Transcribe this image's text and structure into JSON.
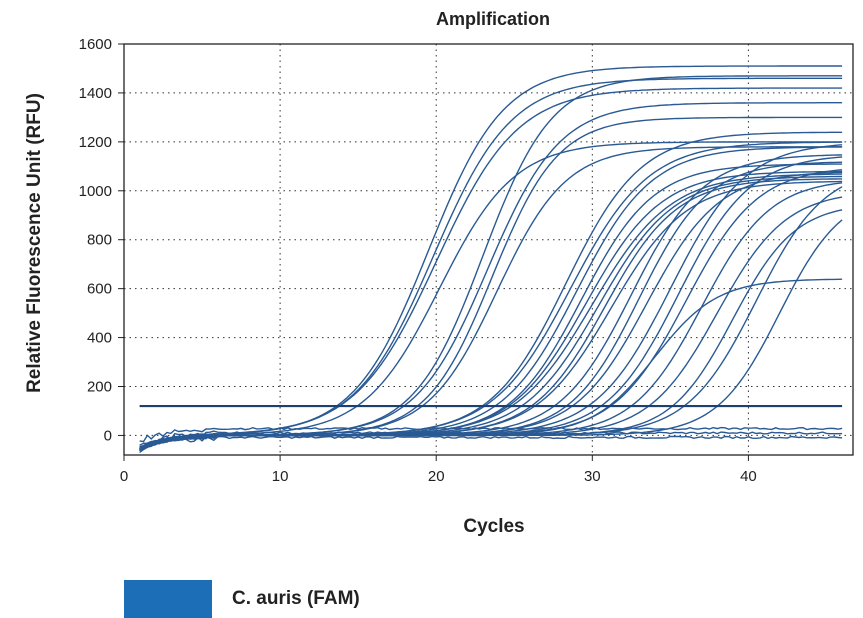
{
  "chart_data": {
    "type": "line",
    "title": "Amplification",
    "xlabel": "Cycles",
    "ylabel": "Relative Fluorescence Unit (RFU)",
    "xlim": [
      0,
      46.7
    ],
    "ylim": [
      -80,
      1600
    ],
    "xticks": [
      0,
      10,
      20,
      30,
      40
    ],
    "yticks": [
      0,
      200,
      400,
      600,
      800,
      1000,
      1200,
      1400,
      1600
    ],
    "grid": "dotted",
    "line_color": "#2a5a94",
    "threshold": 120,
    "legend_position": "bottom-left",
    "legend": [
      {
        "label": "C. auris (FAM)",
        "color": "#1c6fb6"
      }
    ],
    "curves": [
      {
        "ct": 19.5,
        "plateau": 1510,
        "slope": 2.4
      },
      {
        "ct": 19.8,
        "plateau": 1460,
        "slope": 2.5
      },
      {
        "ct": 20.0,
        "plateau": 1420,
        "slope": 2.6
      },
      {
        "ct": 20.2,
        "plateau": 1200,
        "slope": 2.4
      },
      {
        "ct": 23.0,
        "plateau": 1470,
        "slope": 2.2
      },
      {
        "ct": 23.3,
        "plateau": 1360,
        "slope": 2.3
      },
      {
        "ct": 23.6,
        "plateau": 1300,
        "slope": 2.1
      },
      {
        "ct": 23.9,
        "plateau": 1180,
        "slope": 2.2
      },
      {
        "ct": 28.3,
        "plateau": 1240,
        "slope": 2.4
      },
      {
        "ct": 28.6,
        "plateau": 1200,
        "slope": 2.5
      },
      {
        "ct": 29.0,
        "plateau": 1180,
        "slope": 2.4
      },
      {
        "ct": 29.3,
        "plateau": 1110,
        "slope": 2.3
      },
      {
        "ct": 29.6,
        "plateau": 1080,
        "slope": 2.4
      },
      {
        "ct": 30.0,
        "plateau": 1070,
        "slope": 2.5
      },
      {
        "ct": 30.4,
        "plateau": 1060,
        "slope": 2.4
      },
      {
        "ct": 30.8,
        "plateau": 1050,
        "slope": 2.3
      },
      {
        "ct": 31.2,
        "plateau": 1040,
        "slope": 2.4
      },
      {
        "ct": 32.5,
        "plateau": 1150,
        "slope": 2.3
      },
      {
        "ct": 33.0,
        "plateau": 1120,
        "slope": 2.2
      },
      {
        "ct": 33.5,
        "plateau": 1080,
        "slope": 2.3
      },
      {
        "ct": 34.0,
        "plateau": 640,
        "slope": 2.0
      },
      {
        "ct": 35.0,
        "plateau": 1200,
        "slope": 2.4
      },
      {
        "ct": 35.5,
        "plateau": 1150,
        "slope": 2.3
      },
      {
        "ct": 36.0,
        "plateau": 1100,
        "slope": 2.3
      },
      {
        "ct": 37.0,
        "plateau": 1050,
        "slope": 2.2
      },
      {
        "ct": 38.0,
        "plateau": 1000,
        "slope": 2.2
      },
      {
        "ct": 39.0,
        "plateau": 950,
        "slope": 2.0
      },
      {
        "ct": 40.5,
        "plateau": 1100,
        "slope": 2.2
      },
      {
        "ct": 42.0,
        "plateau": 1000,
        "slope": 2.0
      },
      {
        "ct": 99,
        "plateau": 0,
        "slope": 2,
        "baseline": 28
      },
      {
        "ct": 99,
        "plateau": 0,
        "slope": 2,
        "baseline": 10
      },
      {
        "ct": 99,
        "plateau": 0,
        "slope": 2,
        "baseline": -8
      }
    ]
  }
}
